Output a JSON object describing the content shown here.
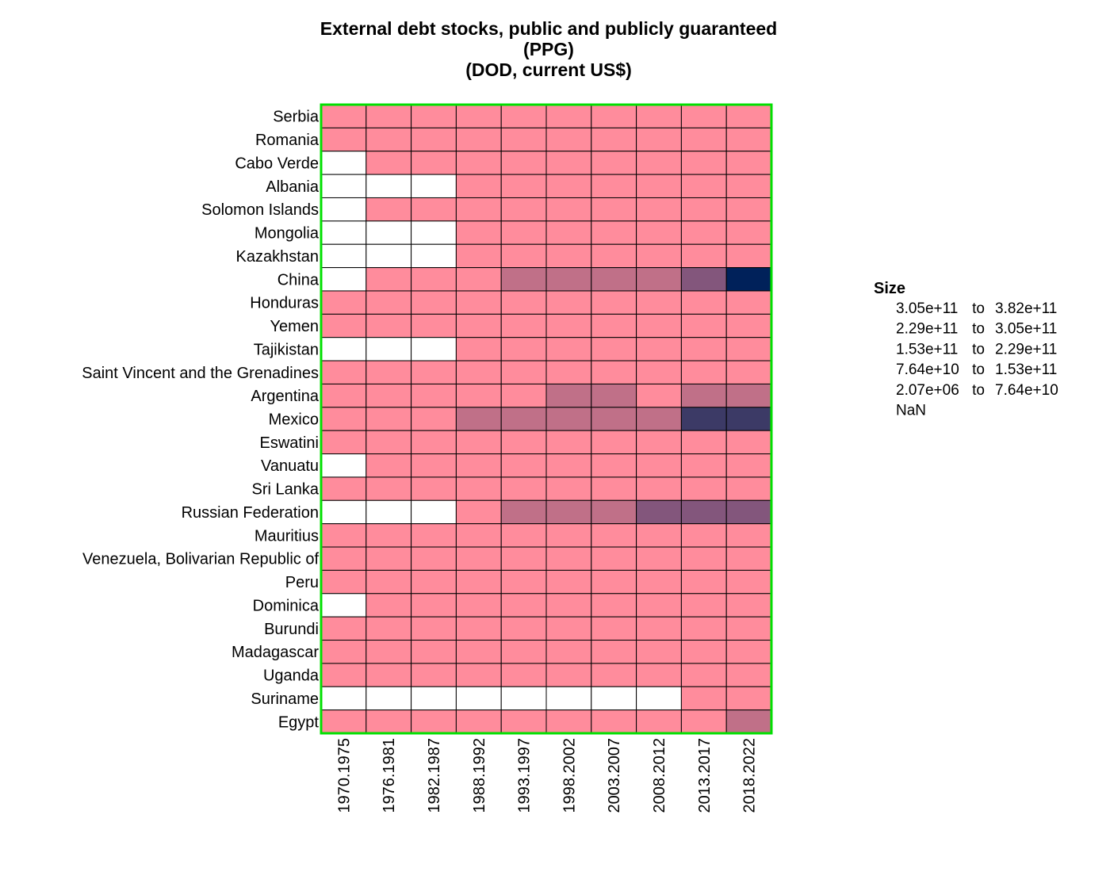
{
  "chart_data": {
    "type": "heatmap",
    "title_lines": [
      "External debt stocks, public and publicly guaranteed",
      "(PPG)",
      "(DOD, current US$)"
    ],
    "columns": [
      "1970.1975",
      "1976.1981",
      "1982.1987",
      "1988.1992",
      "1993.1997",
      "1998.2002",
      "2003.2007",
      "2008.2012",
      "2013.2017",
      "2018.2022"
    ],
    "rows": [
      "Serbia",
      "Romania",
      "Cabo Verde",
      "Albania",
      "Solomon Islands",
      "Mongolia",
      "Kazakhstan",
      "China",
      "Honduras",
      "Yemen",
      "Tajikistan",
      "Saint Vincent and the Grenadines",
      "Argentina",
      "Mexico",
      "Eswatini",
      "Vanuatu",
      "Sri Lanka",
      "Russian Federation",
      "Mauritius",
      "Venezuela, Bolivarian Republic of",
      "Peru",
      "Dominica",
      "Burundi",
      "Madagascar",
      "Uganda",
      "Suriname",
      "Egypt"
    ],
    "cell_bins": [
      [
        1,
        1,
        1,
        1,
        1,
        1,
        1,
        1,
        1,
        1
      ],
      [
        1,
        1,
        1,
        1,
        1,
        1,
        1,
        1,
        1,
        1
      ],
      [
        0,
        1,
        1,
        1,
        1,
        1,
        1,
        1,
        1,
        1
      ],
      [
        0,
        0,
        0,
        1,
        1,
        1,
        1,
        1,
        1,
        1
      ],
      [
        0,
        1,
        1,
        1,
        1,
        1,
        1,
        1,
        1,
        1
      ],
      [
        0,
        0,
        0,
        1,
        1,
        1,
        1,
        1,
        1,
        1
      ],
      [
        0,
        0,
        0,
        1,
        1,
        1,
        1,
        1,
        1,
        1
      ],
      [
        0,
        1,
        1,
        1,
        2,
        2,
        2,
        2,
        3,
        5
      ],
      [
        1,
        1,
        1,
        1,
        1,
        1,
        1,
        1,
        1,
        1
      ],
      [
        1,
        1,
        1,
        1,
        1,
        1,
        1,
        1,
        1,
        1
      ],
      [
        0,
        0,
        0,
        1,
        1,
        1,
        1,
        1,
        1,
        1
      ],
      [
        1,
        1,
        1,
        1,
        1,
        1,
        1,
        1,
        1,
        1
      ],
      [
        1,
        1,
        1,
        1,
        1,
        2,
        2,
        1,
        2,
        2
      ],
      [
        1,
        1,
        1,
        2,
        2,
        2,
        2,
        2,
        4,
        4
      ],
      [
        1,
        1,
        1,
        1,
        1,
        1,
        1,
        1,
        1,
        1
      ],
      [
        0,
        1,
        1,
        1,
        1,
        1,
        1,
        1,
        1,
        1
      ],
      [
        1,
        1,
        1,
        1,
        1,
        1,
        1,
        1,
        1,
        1
      ],
      [
        0,
        0,
        0,
        1,
        2,
        2,
        2,
        3,
        3,
        3
      ],
      [
        1,
        1,
        1,
        1,
        1,
        1,
        1,
        1,
        1,
        1
      ],
      [
        1,
        1,
        1,
        1,
        1,
        1,
        1,
        1,
        1,
        1
      ],
      [
        1,
        1,
        1,
        1,
        1,
        1,
        1,
        1,
        1,
        1
      ],
      [
        0,
        1,
        1,
        1,
        1,
        1,
        1,
        1,
        1,
        1
      ],
      [
        1,
        1,
        1,
        1,
        1,
        1,
        1,
        1,
        1,
        1
      ],
      [
        1,
        1,
        1,
        1,
        1,
        1,
        1,
        1,
        1,
        1
      ],
      [
        1,
        1,
        1,
        1,
        1,
        1,
        1,
        1,
        1,
        1
      ],
      [
        0,
        0,
        0,
        0,
        0,
        0,
        0,
        0,
        1,
        1
      ],
      [
        1,
        1,
        1,
        1,
        1,
        1,
        1,
        1,
        1,
        2
      ]
    ],
    "bin_colors": [
      "#ffffff",
      "#ff8c9c",
      "#c07088",
      "#83567c",
      "#3c3a66",
      "#00215a"
    ],
    "legend": {
      "title": "Size",
      "entries": [
        {
          "low": "3.05e+11",
          "sep": "to",
          "high": "3.82e+11"
        },
        {
          "low": "2.29e+11",
          "sep": "to",
          "high": "3.05e+11"
        },
        {
          "low": "1.53e+11",
          "sep": "to",
          "high": "2.29e+11"
        },
        {
          "low": "7.64e+10",
          "sep": "to",
          "high": "1.53e+11"
        },
        {
          "low": "2.07e+06",
          "sep": "to",
          "high": "7.64e+10"
        },
        {
          "low": "NaN",
          "sep": "",
          "high": ""
        }
      ]
    },
    "frame_color": "#00e000",
    "grid_color": "#000000"
  }
}
